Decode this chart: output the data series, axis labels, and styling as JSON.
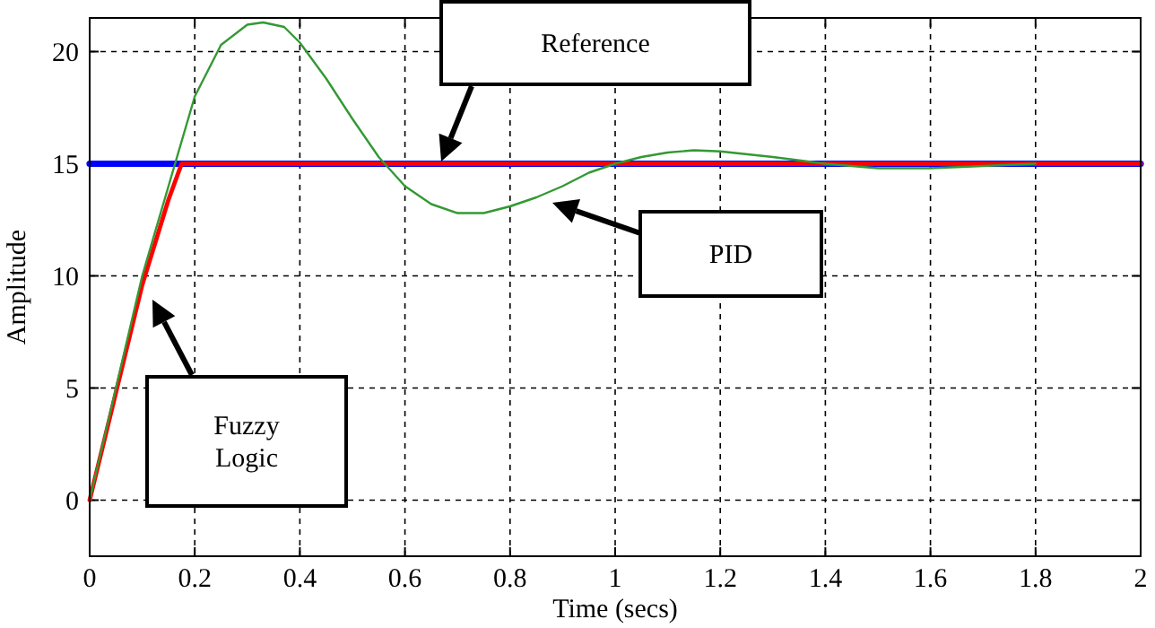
{
  "chart_data": {
    "type": "line",
    "xlabel": "Time (secs)",
    "ylabel": "Amplitude",
    "xlim": [
      0,
      2
    ],
    "ylim": [
      -2.5,
      21.5
    ],
    "xticks": [
      0,
      0.2,
      0.4,
      0.6,
      0.8,
      1,
      1.2,
      1.4,
      1.6,
      1.8,
      2
    ],
    "yticks": [
      0,
      5,
      10,
      15,
      20
    ],
    "grid": true,
    "line_style": "solid",
    "marker": "none",
    "series": [
      {
        "color": "#0000ff",
        "x": [
          0,
          2
        ],
        "values": [
          15,
          15
        ]
      },
      {
        "color": "#ff0000",
        "x": [
          0,
          0.05,
          0.1,
          0.15,
          0.175,
          2
        ],
        "values": [
          0,
          4.8,
          9.6,
          13.4,
          15,
          15
        ]
      },
      {
        "color": "#339933",
        "x": [
          0,
          0.05,
          0.1,
          0.15,
          0.2,
          0.25,
          0.3,
          0.33,
          0.37,
          0.4,
          0.45,
          0.5,
          0.55,
          0.6,
          0.65,
          0.7,
          0.75,
          0.8,
          0.85,
          0.9,
          0.95,
          1,
          1.05,
          1.1,
          1.15,
          1.2,
          1.3,
          1.4,
          1.5,
          1.6,
          1.7,
          1.8
        ],
        "values": [
          0,
          5,
          10,
          14,
          18,
          20.3,
          21.2,
          21.3,
          21.1,
          20.4,
          18.8,
          17,
          15.3,
          14,
          13.2,
          12.8,
          12.8,
          13.1,
          13.5,
          14,
          14.6,
          15,
          15.3,
          15.5,
          15.6,
          15.55,
          15.3,
          15,
          14.8,
          14.8,
          14.9,
          15
        ]
      }
    ],
    "annotations": [
      "Reference",
      "PID",
      "Fuzzy Logic"
    ]
  }
}
